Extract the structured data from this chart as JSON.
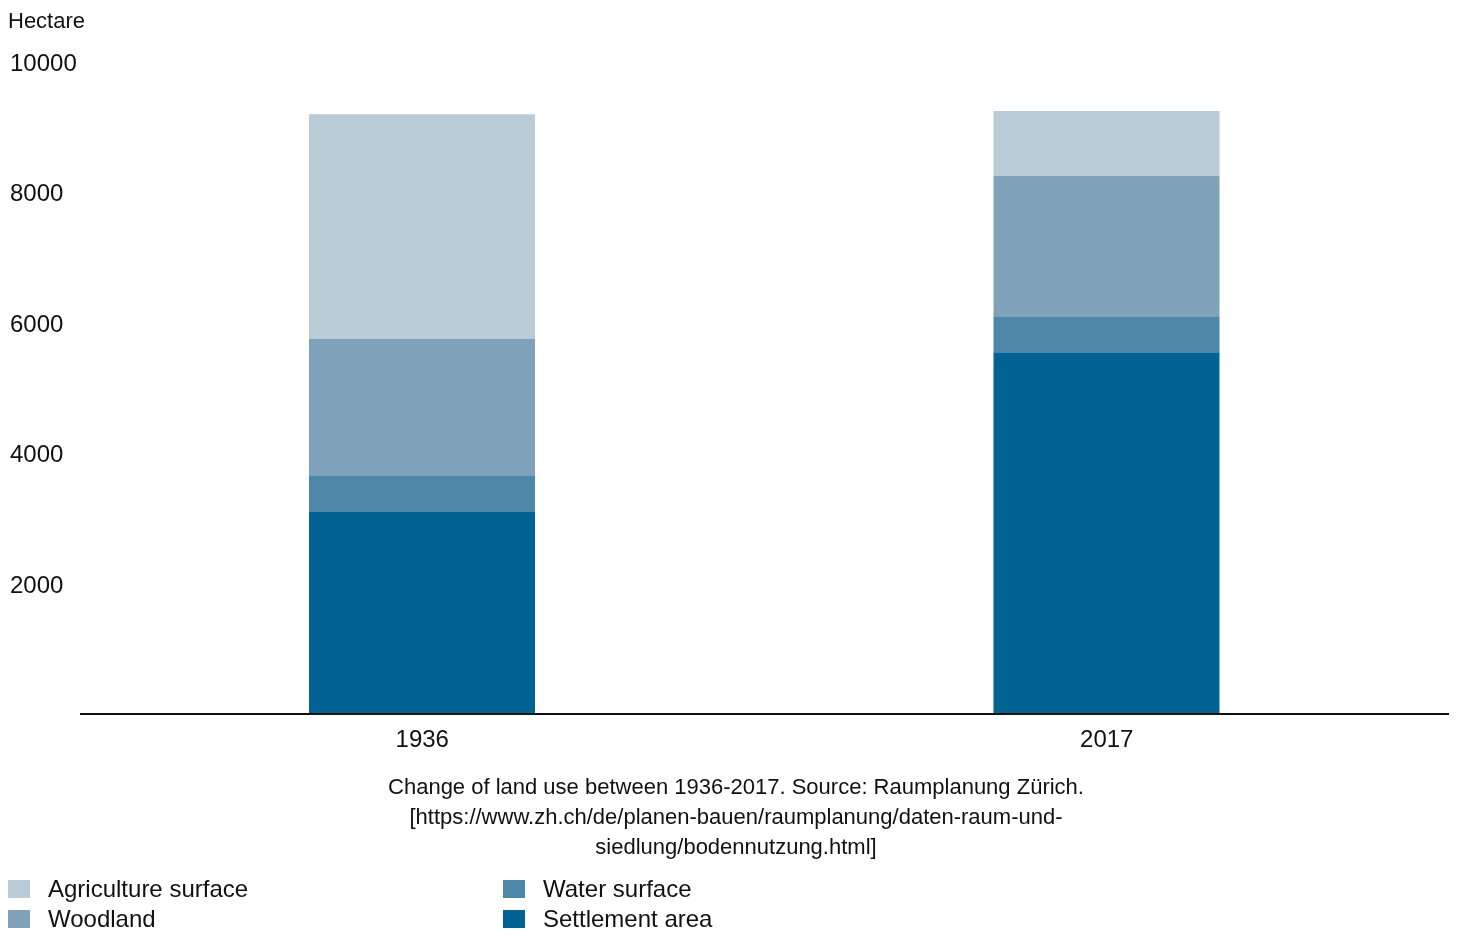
{
  "chart_data": {
    "type": "bar",
    "stacked": true,
    "ylabel": "Hectare",
    "categories": [
      "1936",
      "2017"
    ],
    "series": [
      {
        "name": "Settlement area",
        "color": "#006394",
        "values": [
          3100,
          5550
        ]
      },
      {
        "name": "Water surface",
        "color": "#4d88a8",
        "values": [
          550,
          550
        ]
      },
      {
        "name": "Woodland",
        "color": "#7fa1b9",
        "values": [
          2100,
          2150
        ]
      },
      {
        "name": "Agriculture surface",
        "color": "#b9cbd7",
        "values": [
          3450,
          1000
        ]
      }
    ],
    "ylim": [
      0,
      10000
    ],
    "yticks": [
      2000,
      4000,
      6000,
      8000,
      10000
    ],
    "grid": false,
    "legend": "bottom",
    "annotations": [
      "Change of land use between 1936-2017. Source: Raumplanung Zürich. [https://www.zh.ch/de/planen-bauen/raumplanung/daten-raum-und-siedlung/bodennutzung.html]"
    ]
  }
}
